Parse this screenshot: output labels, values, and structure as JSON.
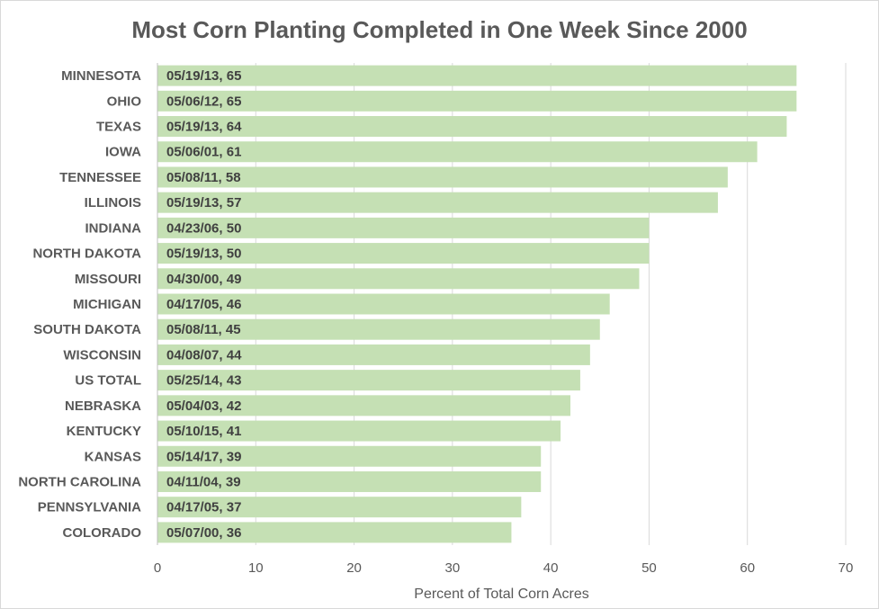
{
  "chart_data": {
    "type": "bar",
    "orientation": "horizontal",
    "title": "Most Corn Planting Completed in One Week Since 2000",
    "xlabel": "Percent of Total Corn Acres",
    "ylabel": "",
    "xlim": [
      0,
      70
    ],
    "x_ticks": [
      0,
      10,
      20,
      30,
      40,
      50,
      60,
      70
    ],
    "grid": true,
    "legend": "none",
    "bar_color": "#c5e0b4",
    "categories": [
      "MINNESOTA",
      "OHIO",
      "TEXAS",
      "IOWA",
      "TENNESSEE",
      "ILLINOIS",
      "INDIANA",
      "NORTH DAKOTA",
      "MISSOURI",
      "MICHIGAN",
      "SOUTH DAKOTA",
      "WISCONSIN",
      "US TOTAL",
      "NEBRASKA",
      "KENTUCKY",
      "KANSAS",
      "NORTH CAROLINA",
      "PENNSYLVANIA",
      "COLORADO"
    ],
    "values": [
      65,
      65,
      64,
      61,
      58,
      57,
      50,
      50,
      49,
      46,
      45,
      44,
      43,
      42,
      41,
      39,
      39,
      37,
      36
    ],
    "data_labels": [
      "05/19/13, 65",
      "05/06/12, 65",
      "05/19/13, 64",
      "05/06/01, 61",
      "05/08/11, 58",
      "05/19/13, 57",
      "04/23/06, 50",
      "05/19/13, 50",
      "04/30/00, 49",
      "04/17/05, 46",
      "05/08/11, 45",
      "04/08/07, 44",
      "05/25/14, 43",
      "05/04/03, 42",
      "05/10/15, 41",
      "05/14/17, 39",
      "04/11/04, 39",
      "04/17/05, 37",
      "05/07/00, 36"
    ]
  }
}
